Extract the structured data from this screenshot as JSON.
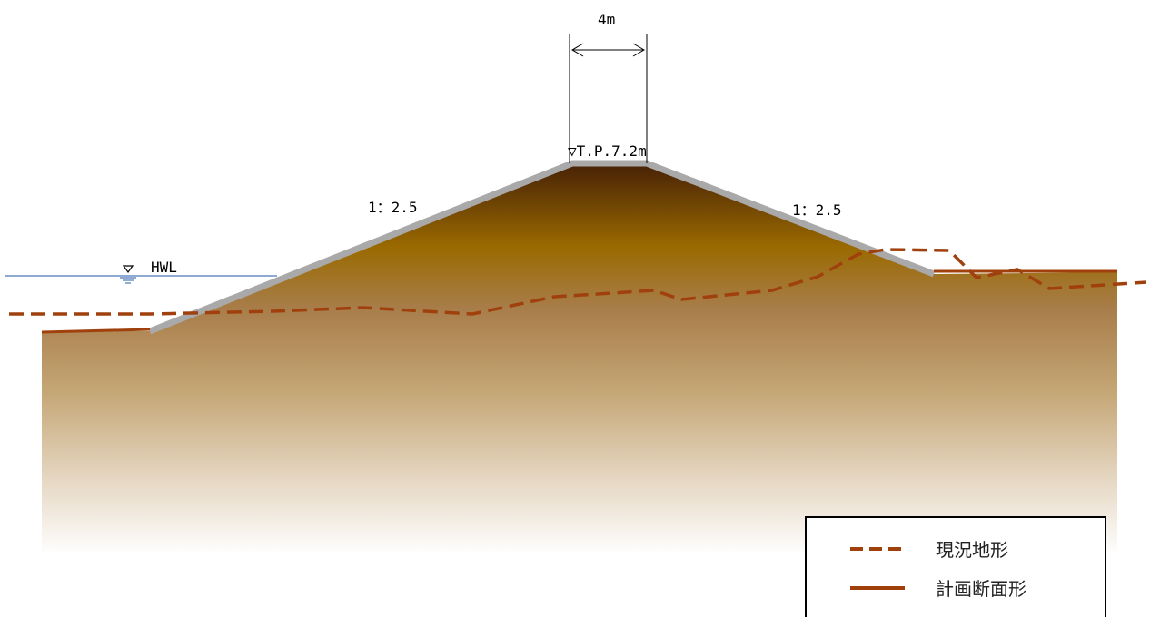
{
  "labels": {
    "crest_width": "4m",
    "crest_elevation": "▽T.P.7.2m",
    "slope_left": "1：2.5",
    "slope_right": "1：2.5",
    "water_level": "HWL"
  },
  "legend": {
    "existing": "現況地形",
    "planned": "計画断面形"
  },
  "colors": {
    "ground_line": "#a0410d",
    "levee_surface": "#a9a9a9",
    "earth_top": "#5a2e0a",
    "earth_mid": "#9a6a1a",
    "earth_light": "#c8a878",
    "water_line": "#4a78b8",
    "legend_border": "#000000"
  }
}
